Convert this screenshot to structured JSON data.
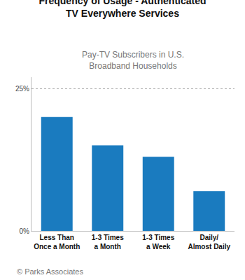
{
  "chart_data": {
    "type": "bar",
    "title": "Frequency of Usage - Authenticated\nTV Everywhere Services",
    "subtitle": "Pay-TV Subscribers in U.S.\nBroadband Households",
    "annotations": [
      "© Parks Associates"
    ],
    "categories": [
      "Less Than\nOnce a Month",
      "1-3 Times\na Month",
      "1-3 Times\na Week",
      "Daily/\nAlmost Daily"
    ],
    "values": [
      20,
      15,
      13,
      7
    ],
    "color": "#1a7bbf",
    "ylim": [
      0,
      27
    ],
    "yticks": [
      {
        "value": 0,
        "label": "0%"
      },
      {
        "value": 25,
        "label": "25%"
      }
    ],
    "grid": true
  }
}
